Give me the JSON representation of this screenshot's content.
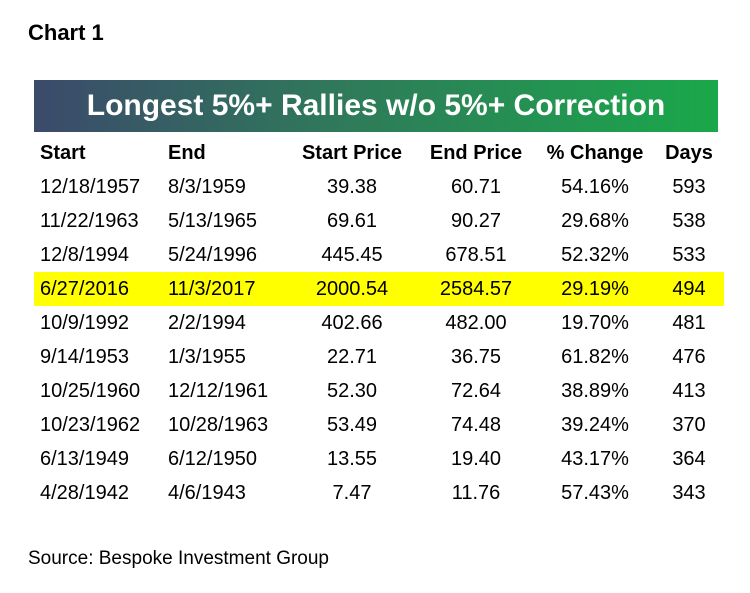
{
  "chart_label": "Chart 1",
  "chart_data": {
    "type": "table",
    "title": "Longest 5%+ Rallies w/o 5%+ Correction",
    "columns": [
      "Start",
      "End",
      "Start Price",
      "End Price",
      "% Change",
      "Days"
    ],
    "rows": [
      {
        "start": "12/18/1957",
        "end": "8/3/1959",
        "start_price": "39.38",
        "end_price": "60.71",
        "pct_change": "54.16%",
        "days": "593",
        "highlight": false
      },
      {
        "start": "11/22/1963",
        "end": "5/13/1965",
        "start_price": "69.61",
        "end_price": "90.27",
        "pct_change": "29.68%",
        "days": "538",
        "highlight": false
      },
      {
        "start": "12/8/1994",
        "end": "5/24/1996",
        "start_price": "445.45",
        "end_price": "678.51",
        "pct_change": "52.32%",
        "days": "533",
        "highlight": false
      },
      {
        "start": "6/27/2016",
        "end": "11/3/2017",
        "start_price": "2000.54",
        "end_price": "2584.57",
        "pct_change": "29.19%",
        "days": "494",
        "highlight": true
      },
      {
        "start": "10/9/1992",
        "end": "2/2/1994",
        "start_price": "402.66",
        "end_price": "482.00",
        "pct_change": "19.70%",
        "days": "481",
        "highlight": false
      },
      {
        "start": "9/14/1953",
        "end": "1/3/1955",
        "start_price": "22.71",
        "end_price": "36.75",
        "pct_change": "61.82%",
        "days": "476",
        "highlight": false
      },
      {
        "start": "10/25/1960",
        "end": "12/12/1961",
        "start_price": "52.30",
        "end_price": "72.64",
        "pct_change": "38.89%",
        "days": "413",
        "highlight": false
      },
      {
        "start": "10/23/1962",
        "end": "10/28/1963",
        "start_price": "53.49",
        "end_price": "74.48",
        "pct_change": "39.24%",
        "days": "370",
        "highlight": false
      },
      {
        "start": "6/13/1949",
        "end": "6/12/1950",
        "start_price": "13.55",
        "end_price": "19.40",
        "pct_change": "43.17%",
        "days": "364",
        "highlight": false
      },
      {
        "start": "4/28/1942",
        "end": "4/6/1943",
        "start_price": "7.47",
        "end_price": "11.76",
        "pct_change": "57.43%",
        "days": "343",
        "highlight": false
      }
    ],
    "highlight_color": "#ffff00",
    "banner_colors": [
      "#3b4a6b",
      "#1aa84a"
    ]
  },
  "source": "Source: Bespoke Investment Group"
}
